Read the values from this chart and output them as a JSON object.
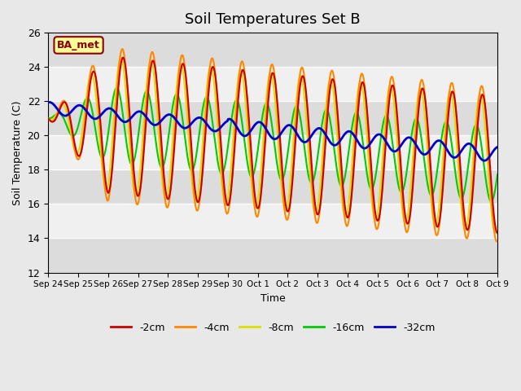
{
  "title": "Soil Temperatures Set B",
  "xlabel": "Time",
  "ylabel": "Soil Temperature (C)",
  "ylim": [
    12,
    26
  ],
  "yticks": [
    12,
    14,
    16,
    18,
    20,
    22,
    24,
    26
  ],
  "annotation": "BA_met",
  "bg_color": "#e8e8e8",
  "plot_bg_color": "#f0f0f0",
  "series": {
    "-2cm": {
      "color": "#cc0000",
      "lw": 1.5
    },
    "-4cm": {
      "color": "#ff8800",
      "lw": 1.5
    },
    "-8cm": {
      "color": "#dddd00",
      "lw": 1.5
    },
    "-16cm": {
      "color": "#00cc00",
      "lw": 1.5
    },
    "-32cm": {
      "color": "#0000cc",
      "lw": 2.0
    }
  },
  "x_tick_labels": [
    "Sep 24",
    "Sep 25",
    "Sep 26",
    "Sep 27",
    "Sep 28",
    "Sep 29",
    "Sep 30",
    "Oct 1",
    "Oct 2",
    "Oct 3",
    "Oct 4",
    "Oct 5",
    "Oct 6",
    "Oct 7",
    "Oct 8",
    "Oct 9"
  ],
  "num_days": 15,
  "points_per_day": 48
}
